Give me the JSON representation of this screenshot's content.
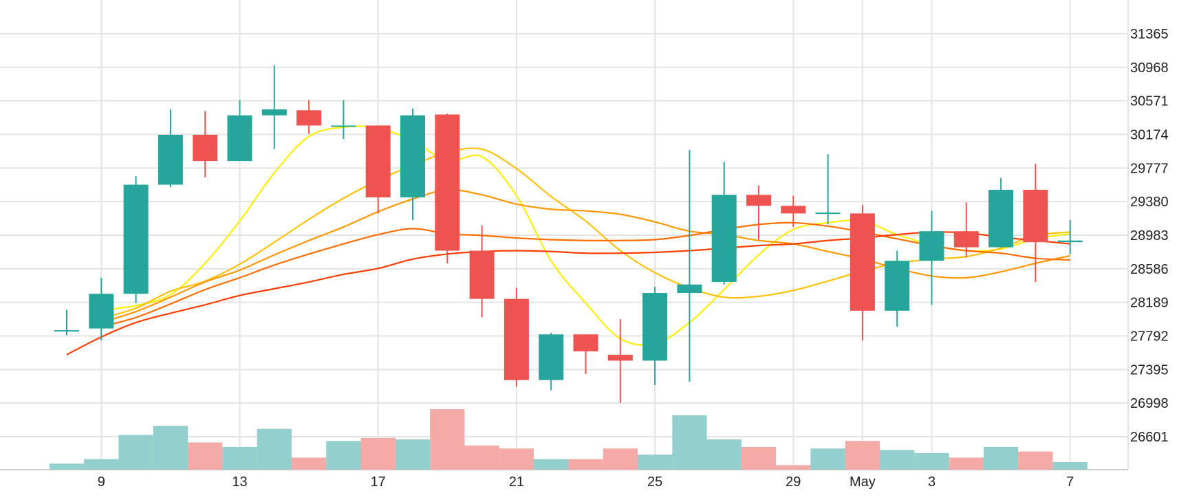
{
  "chart_data": {
    "type": "candlestick",
    "y_ticks": [
      31365,
      30968,
      30571,
      30174,
      29777,
      29380,
      28983,
      28586,
      28189,
      27792,
      27395,
      26998,
      26601
    ],
    "ylim": [
      26200,
      31600
    ],
    "x_ticks": [
      "9",
      "13",
      "17",
      "21",
      "25",
      "29",
      "May",
      "3",
      "7"
    ],
    "x_tick_index": [
      1,
      5,
      9,
      13,
      17,
      21,
      23,
      25,
      29
    ],
    "grid": true,
    "colors": {
      "up": "#26a69a",
      "down": "#ef5350",
      "volume_up": "#93cfcd",
      "volume_down": "#f4aaa7",
      "grid": "#e3e3e3",
      "ma": [
        "#ffee00",
        "#ffc107",
        "#ff9800",
        "#ff6d00",
        "#ff3d00"
      ]
    },
    "candles": [
      {
        "date": "8",
        "o": 27850,
        "h": 28100,
        "l": 27800,
        "c": 27860
      },
      {
        "date": "9",
        "o": 27880,
        "h": 28480,
        "l": 27740,
        "c": 28290
      },
      {
        "date": "10",
        "o": 28290,
        "h": 29680,
        "l": 28180,
        "c": 29580
      },
      {
        "date": "11",
        "o": 29580,
        "h": 30470,
        "l": 29550,
        "c": 30170
      },
      {
        "date": "12",
        "o": 30170,
        "h": 30450,
        "l": 29670,
        "c": 29860
      },
      {
        "date": "13",
        "o": 29860,
        "h": 30580,
        "l": 29860,
        "c": 30400
      },
      {
        "date": "14",
        "o": 30400,
        "h": 30990,
        "l": 30000,
        "c": 30470
      },
      {
        "date": "15",
        "o": 30460,
        "h": 30580,
        "l": 30180,
        "c": 30280
      },
      {
        "date": "16",
        "o": 30270,
        "h": 30580,
        "l": 30120,
        "c": 30280
      },
      {
        "date": "17",
        "o": 30280,
        "h": 30280,
        "l": 29240,
        "c": 29430
      },
      {
        "date": "18",
        "o": 29430,
        "h": 30480,
        "l": 29160,
        "c": 30400
      },
      {
        "date": "19",
        "o": 30410,
        "h": 30420,
        "l": 28650,
        "c": 28800
      },
      {
        "date": "20",
        "o": 28800,
        "h": 29100,
        "l": 28010,
        "c": 28230
      },
      {
        "date": "21",
        "o": 28230,
        "h": 28360,
        "l": 27190,
        "c": 27270
      },
      {
        "date": "22",
        "o": 27270,
        "h": 27830,
        "l": 27150,
        "c": 27810
      },
      {
        "date": "23",
        "o": 27810,
        "h": 27810,
        "l": 27340,
        "c": 27610
      },
      {
        "date": "24",
        "o": 27570,
        "h": 27990,
        "l": 27000,
        "c": 27500
      },
      {
        "date": "25",
        "o": 27500,
        "h": 28370,
        "l": 27210,
        "c": 28300
      },
      {
        "date": "26",
        "o": 28300,
        "h": 29990,
        "l": 27250,
        "c": 28400
      },
      {
        "date": "27",
        "o": 28430,
        "h": 29850,
        "l": 28400,
        "c": 29460
      },
      {
        "date": "28",
        "o": 29460,
        "h": 29570,
        "l": 28930,
        "c": 29330
      },
      {
        "date": "29",
        "o": 29330,
        "h": 29450,
        "l": 29080,
        "c": 29240
      },
      {
        "date": "30",
        "o": 29240,
        "h": 29940,
        "l": 29110,
        "c": 29250
      },
      {
        "date": "May",
        "o": 29240,
        "h": 29340,
        "l": 27740,
        "c": 28090
      },
      {
        "date": "2",
        "o": 28090,
        "h": 28800,
        "l": 27900,
        "c": 28680
      },
      {
        "date": "3",
        "o": 28680,
        "h": 29270,
        "l": 28160,
        "c": 29030
      },
      {
        "date": "4",
        "o": 29030,
        "h": 29370,
        "l": 28720,
        "c": 28840
      },
      {
        "date": "5",
        "o": 28840,
        "h": 29660,
        "l": 28840,
        "c": 29520
      },
      {
        "date": "6",
        "o": 29520,
        "h": 29830,
        "l": 28430,
        "c": 28900
      },
      {
        "date": "7",
        "o": 28900,
        "h": 29160,
        "l": 28760,
        "c": 28920
      }
    ],
    "volume": [
      4,
      7,
      23,
      29,
      18,
      15,
      27,
      8,
      19,
      21,
      20,
      40,
      16,
      14,
      7,
      7,
      14,
      10,
      36,
      20,
      15,
      3,
      14,
      19,
      13,
      11,
      8,
      15,
      12,
      5
    ],
    "volume_max": 40,
    "moving_averages": [
      {
        "start": 1,
        "values": [
          28100,
          28150,
          28280,
          28650,
          29150,
          29720,
          30150,
          30260,
          30250,
          30100,
          29860,
          29910,
          29450,
          28680,
          28180,
          27760,
          27700,
          27950,
          28340,
          28750,
          29050,
          29130,
          29150,
          28990,
          28870,
          28800,
          28820,
          28940,
          29000
        ]
      },
      {
        "start": 1,
        "values": [
          28000,
          28120,
          28320,
          28440,
          28640,
          28900,
          29170,
          29420,
          29630,
          29810,
          29960,
          30000,
          29770,
          29440,
          29150,
          28800,
          28540,
          28360,
          28250,
          28260,
          28330,
          28440,
          28560,
          28650,
          28700,
          28730,
          28830,
          28980,
          29020
        ]
      },
      {
        "start": 1,
        "values": [
          27950,
          28080,
          28250,
          28430,
          28570,
          28750,
          28920,
          29080,
          29260,
          29410,
          29520,
          29460,
          29350,
          29290,
          29270,
          29230,
          29140,
          29030,
          28990,
          28920,
          28880,
          28790,
          28700,
          28590,
          28500,
          28480,
          28550,
          28650,
          28740
        ]
      },
      {
        "start": 1,
        "values": [
          27900,
          28010,
          28170,
          28340,
          28480,
          28630,
          28760,
          28880,
          28990,
          29060,
          29000,
          28980,
          28950,
          28930,
          28920,
          28920,
          28930,
          28980,
          29050,
          29110,
          29130,
          29090,
          29020,
          28940,
          28860,
          28800,
          28770,
          28710,
          28690
        ]
      },
      {
        "start": 0,
        "values": [
          27570,
          27780,
          27950,
          28060,
          28160,
          28270,
          28350,
          28430,
          28520,
          28590,
          28700,
          28760,
          28790,
          28800,
          28790,
          28770,
          28770,
          28780,
          28800,
          28830,
          28860,
          28880,
          28920,
          28950,
          28990,
          29020,
          29010,
          28960,
          28920,
          28880
        ]
      }
    ]
  }
}
